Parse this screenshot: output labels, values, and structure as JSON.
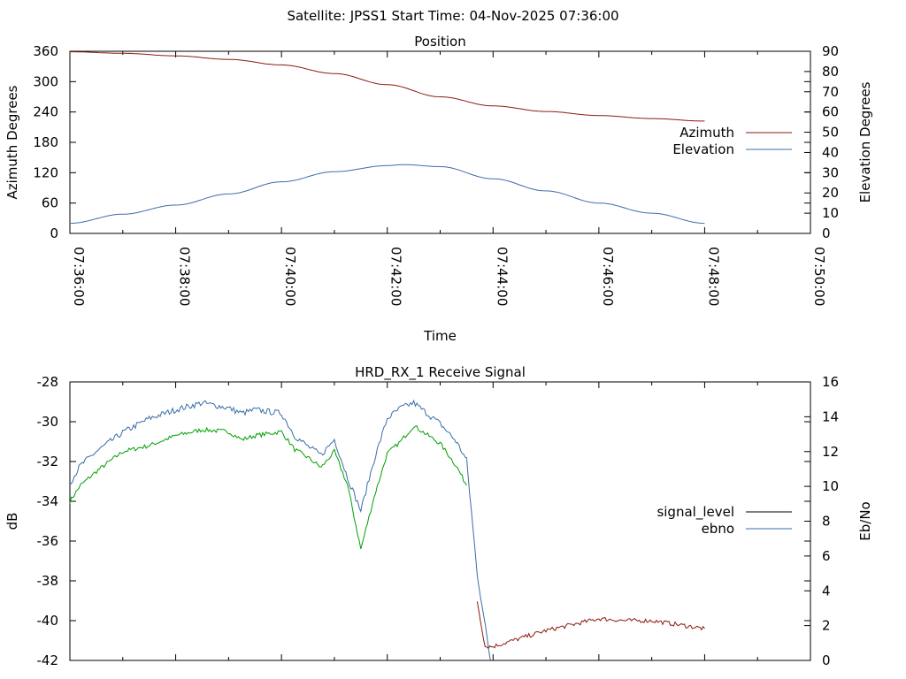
{
  "page_title": "Satellite: JPSS1    Start Time: 04-Nov-2025 07:36:00",
  "chart_data": [
    {
      "type": "line",
      "title": "Position",
      "xlabel": "Time",
      "ylabel": "Azimuth Degrees",
      "y2label": "Elevation Degrees",
      "x_ticks": [
        "07:36:00",
        "07:38:00",
        "07:40:00",
        "07:42:00",
        "07:44:00",
        "07:46:00",
        "07:48:00",
        "07:50:00"
      ],
      "xlim_minutes": [
        0,
        14
      ],
      "ylim": [
        0,
        360
      ],
      "y_ticks": [
        "0",
        "60",
        "120",
        "180",
        "240",
        "300",
        "360"
      ],
      "y2lim": [
        0,
        90
      ],
      "y2_ticks": [
        "0",
        "10",
        "20",
        "30",
        "40",
        "50",
        "60",
        "70",
        "80",
        "90"
      ],
      "legend_position": "right",
      "series": [
        {
          "name": "Azimuth",
          "axis": "y",
          "color": "#8b1a0e",
          "x_minutes": [
            0,
            1,
            2,
            3,
            4,
            5,
            6,
            7,
            8,
            9,
            10,
            11,
            12
          ],
          "values": [
            359,
            356,
            351,
            344,
            333,
            316,
            294,
            270,
            252,
            241,
            233,
            227,
            222
          ]
        },
        {
          "name": "Elevation",
          "axis": "y2",
          "color": "#3a6da8",
          "x_minutes": [
            0,
            1,
            2,
            3,
            4,
            5,
            6,
            6.3,
            7,
            8,
            9,
            10,
            11,
            12
          ],
          "values": [
            5,
            9.5,
            14,
            19.5,
            25.5,
            30.5,
            33.5,
            34,
            33,
            27,
            21,
            15,
            10,
            5
          ]
        }
      ]
    },
    {
      "type": "line",
      "title": "HRD_RX_1 Receive Signal",
      "ylabel": "dB",
      "y2label": "Eb/No",
      "ylim": [
        -42,
        -28
      ],
      "y_ticks": [
        "-42",
        "-40",
        "-38",
        "-36",
        "-34",
        "-32",
        "-30",
        "-28"
      ],
      "y2lim": [
        0,
        16
      ],
      "y2_ticks": [
        "0",
        "2",
        "4",
        "6",
        "8",
        "10",
        "12",
        "14",
        "16"
      ],
      "xlim_minutes": [
        0,
        14
      ],
      "legend_position": "right",
      "legend": [
        {
          "name": "signal_level",
          "color": "#000000"
        },
        {
          "name": "ebno",
          "color": "#3a6da8"
        }
      ],
      "series": [
        {
          "name": "signal_level (green segment)",
          "axis": "y",
          "color": "#00a000",
          "x_minutes": [
            0,
            0.2,
            0.5,
            1,
            1.5,
            2,
            2.5,
            3,
            3.25,
            3.5,
            4,
            4.25,
            4.5,
            4.75,
            5,
            5.25,
            5.5,
            5.75,
            6,
            6.25,
            6.5,
            7,
            7.3,
            7.5
          ],
          "values": [
            -34,
            -33.2,
            -32.5,
            -31.5,
            -31.2,
            -30.7,
            -30.4,
            -30.5,
            -30.9,
            -30.7,
            -30.5,
            -31.4,
            -31.8,
            -32.3,
            -31.5,
            -33.2,
            -36.4,
            -33.8,
            -31.6,
            -31.0,
            -30.2,
            -31.1,
            -32.2,
            -33.2
          ]
        },
        {
          "name": "ebno (drop segment)",
          "axis": "y2",
          "color": "#3a6da8",
          "x_minutes": [
            0,
            0.2,
            0.5,
            1,
            1.5,
            2,
            2.5,
            3,
            3.25,
            3.5,
            4,
            4.25,
            4.5,
            4.75,
            5,
            5.25,
            5.5,
            5.75,
            6,
            6.25,
            6.5,
            7,
            7.3,
            7.5,
            7.7,
            7.95
          ],
          "values": [
            10.2,
            11.2,
            12,
            13.1,
            13.9,
            14.4,
            14.8,
            14.5,
            14.2,
            14.4,
            14.2,
            12.9,
            12.3,
            11.8,
            12.7,
            10.5,
            8.6,
            11.5,
            13.9,
            14.5,
            14.8,
            13.6,
            12.6,
            11.5,
            5,
            0
          ]
        },
        {
          "name": "signal_level (red segment)",
          "axis": "y",
          "color": "#8b1a0e",
          "x_minutes": [
            7.7,
            7.85,
            8.0,
            8.5,
            9,
            9.5,
            10,
            10.5,
            11,
            11.5,
            12
          ],
          "values": [
            -39,
            -41.3,
            -41.3,
            -40.9,
            -40.5,
            -40.2,
            -39.9,
            -40.0,
            -40.0,
            -40.2,
            -40.4
          ]
        }
      ]
    }
  ]
}
